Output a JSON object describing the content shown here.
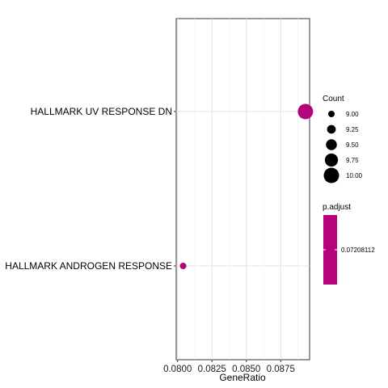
{
  "chart_data": {
    "type": "scatter",
    "title": "",
    "xlabel": "GeneRatio",
    "ylabel": "",
    "xlim": [
      0.0799,
      0.0896
    ],
    "x_ticks": [
      0.08,
      0.0825,
      0.085,
      0.0875
    ],
    "x_tick_labels": [
      "0.0800",
      "0.0825",
      "0.0850",
      "0.0875"
    ],
    "categories": [
      "HALLMARK UV RESPONSE DN",
      "HALLMARK ANDROGEN RESPONSE"
    ],
    "points": [
      {
        "category": "HALLMARK UV RESPONSE DN",
        "x": 0.0893,
        "count": 10,
        "p_adjust": 0.07208112
      },
      {
        "category": "HALLMARK ANDROGEN RESPONSE",
        "x": 0.0804,
        "count": 9,
        "p_adjust": 0.07208112
      }
    ],
    "grid": true,
    "point_color": "#B5037D",
    "legend": {
      "placement": "right",
      "size_title": "Count",
      "size_entries": [
        {
          "label": "9.00",
          "value": 9.0
        },
        {
          "label": "9.25",
          "value": 9.25
        },
        {
          "label": "9.50",
          "value": 9.5
        },
        {
          "label": "9.75",
          "value": 9.75
        },
        {
          "label": "10.00",
          "value": 10.0
        }
      ],
      "color_title": "p.adjust",
      "color_entries": [
        {
          "label": "0.07208112",
          "value": 0.07208112,
          "color": "#B5037D"
        }
      ]
    }
  }
}
